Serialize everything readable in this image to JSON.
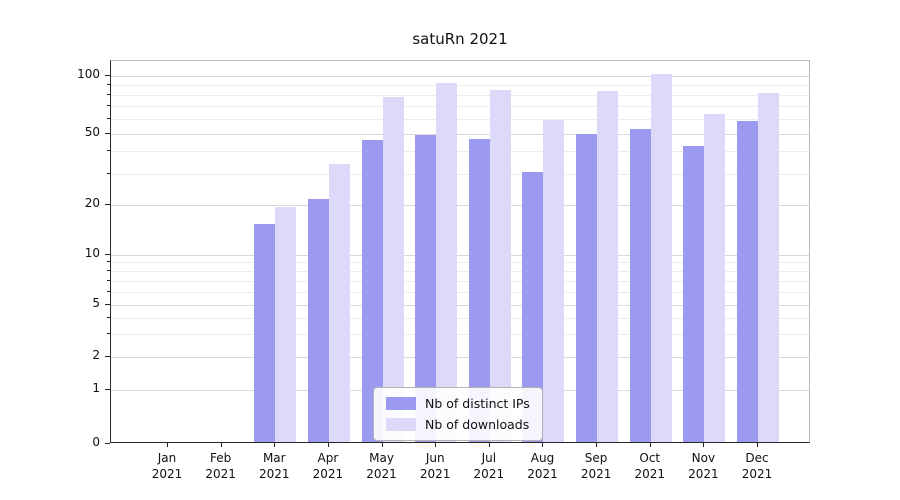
{
  "title": "satuRn 2021",
  "chart_data": {
    "type": "bar",
    "title": "satuRn 2021",
    "categories": [
      "Jan 2021",
      "Feb 2021",
      "Mar 2021",
      "Apr 2021",
      "May 2021",
      "Jun 2021",
      "Jul 2021",
      "Aug 2021",
      "Sep 2021",
      "Oct 2021",
      "Nov 2021",
      "Dec 2021"
    ],
    "month_labels": [
      "Jan",
      "Feb",
      "Mar",
      "Apr",
      "May",
      "Jun",
      "Jul",
      "Aug",
      "Sep",
      "Oct",
      "Nov",
      "Dec"
    ],
    "year_label": "2021",
    "series": [
      {
        "name": "Nb of distinct IPs",
        "color": "#9b99f0",
        "values": [
          0,
          0,
          15,
          21,
          45,
          48,
          46,
          30,
          49,
          52,
          42,
          57
        ]
      },
      {
        "name": "Nb of downloads",
        "color": "#dcdaf8",
        "values": [
          0,
          0,
          19,
          33,
          76,
          90,
          83,
          58,
          82,
          100,
          62,
          80
        ]
      }
    ],
    "y_axis": {
      "ticks": [
        0,
        1,
        2,
        5,
        10,
        20,
        50,
        100
      ],
      "minor_gridlines": [
        3,
        4,
        6,
        7,
        8,
        9,
        30,
        40,
        60,
        70,
        80,
        90
      ],
      "scale": "log-like",
      "ylim": [
        0,
        110
      ]
    },
    "xlabel": "",
    "ylabel": "",
    "grid": "horizontal",
    "legend_position": "inside-bottom-center"
  },
  "colors": {
    "grid_major": "#d9d9d9",
    "grid_minor": "#ececec",
    "axis": "#262626",
    "text": "#111111"
  }
}
